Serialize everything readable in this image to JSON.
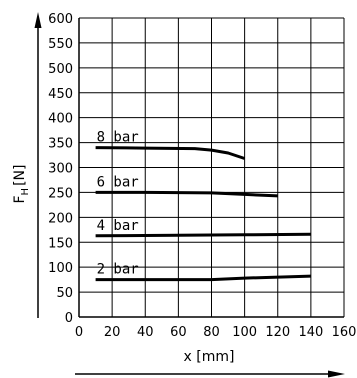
{
  "chart_data": {
    "type": "line",
    "xlabel": "x [mm]",
    "ylabel": "F",
    "ylabel_sub": "H",
    "ylabel_unit": "[N]",
    "xlim": [
      0,
      160
    ],
    "ylim": [
      0,
      600
    ],
    "x_ticks": [
      0,
      20,
      40,
      60,
      80,
      100,
      120,
      140,
      160
    ],
    "y_ticks": [
      0,
      50,
      100,
      150,
      200,
      250,
      300,
      350,
      400,
      450,
      500,
      550,
      600
    ],
    "grid": true,
    "series": [
      {
        "name": "8 bar",
        "points": [
          [
            10,
            340
          ],
          [
            40,
            339
          ],
          [
            70,
            338
          ],
          [
            80,
            335
          ],
          [
            90,
            329
          ],
          [
            100,
            318
          ]
        ]
      },
      {
        "name": "6 bar",
        "points": [
          [
            10,
            250
          ],
          [
            40,
            250
          ],
          [
            80,
            249
          ],
          [
            100,
            246
          ],
          [
            120,
            243
          ]
        ]
      },
      {
        "name": "4 bar",
        "points": [
          [
            10,
            163
          ],
          [
            60,
            164
          ],
          [
            100,
            165
          ],
          [
            140,
            166
          ]
        ]
      },
      {
        "name": "2 bar",
        "points": [
          [
            10,
            75
          ],
          [
            50,
            75
          ],
          [
            80,
            75
          ],
          [
            100,
            78
          ],
          [
            140,
            82
          ]
        ]
      }
    ]
  }
}
